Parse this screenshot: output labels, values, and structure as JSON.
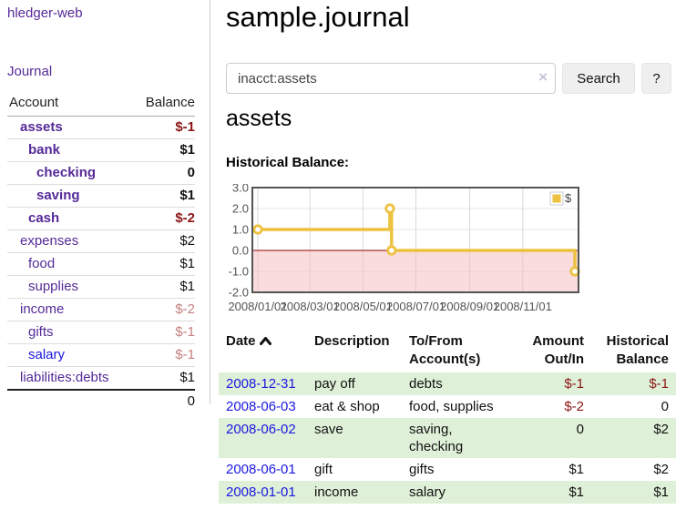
{
  "colors": {
    "link_purple": "#552a97",
    "link_blue": "#1c18e0",
    "negative_strong": "#8b1515",
    "negative_weak": "#c48080",
    "row_green": "#dff0d8"
  },
  "sidebar": {
    "app_title": "hledger-web",
    "nav": [
      {
        "label": "Journal"
      }
    ],
    "accounts_table": {
      "headers": {
        "account": "Account",
        "balance": "Balance"
      },
      "rows": [
        {
          "account": "assets",
          "level": 1,
          "bold": true,
          "balance": "$-1",
          "neg": "strong"
        },
        {
          "account": "bank",
          "level": 2,
          "bold": true,
          "balance": "$1"
        },
        {
          "account": "checking",
          "level": 3,
          "bold": true,
          "balance": "0"
        },
        {
          "account": "saving",
          "level": 3,
          "bold": true,
          "balance": "$1"
        },
        {
          "account": "cash",
          "level": 2,
          "bold": true,
          "balance": "$-2",
          "neg": "strong"
        },
        {
          "account": "expenses",
          "level": 1,
          "balance": "$2"
        },
        {
          "account": "food",
          "level": 2,
          "balance": "$1"
        },
        {
          "account": "supplies",
          "level": 2,
          "balance": "$1"
        },
        {
          "account": "income",
          "level": 1,
          "balance": "$-2",
          "neg": "weak"
        },
        {
          "account": "gifts",
          "level": 2,
          "balance": "$-1",
          "neg": "weak"
        },
        {
          "account": "salary",
          "level": 2,
          "blue": true,
          "balance": "$-1",
          "neg": "weak"
        },
        {
          "account": "liabilities:debts",
          "level": 1,
          "balance": "$1"
        }
      ],
      "total": "0"
    }
  },
  "main": {
    "title": "sample.journal",
    "search": {
      "value": "inacct:assets",
      "clear_icon": "×",
      "button": "Search",
      "help_button": "?"
    },
    "account_heading": "assets",
    "chart_label": "Historical Balance:",
    "register": {
      "headers": [
        "Date",
        "Description",
        "To/From Account(s)",
        "Amount Out/In",
        "Historical Balance"
      ],
      "sort_icon": "chevron-up",
      "rows": [
        {
          "date": "2008-12-31",
          "description": "pay off",
          "accounts": "debts",
          "amount": "$-1",
          "balance": "$-1"
        },
        {
          "date": "2008-06-03",
          "description": "eat & shop",
          "accounts": "food, supplies",
          "amount": "$-2",
          "balance": "0"
        },
        {
          "date": "2008-06-02",
          "description": "save",
          "accounts": "saving, checking",
          "amount": "0",
          "balance": "$2"
        },
        {
          "date": "2008-06-01",
          "description": "gift",
          "accounts": "gifts",
          "amount": "$1",
          "balance": "$2"
        },
        {
          "date": "2008-01-01",
          "description": "income",
          "accounts": "salary",
          "amount": "$1",
          "balance": "$1"
        }
      ]
    }
  },
  "chart_data": {
    "type": "line",
    "title": "Historical Balance:",
    "step": true,
    "x_range": [
      "2008-01-01",
      "2008-12-31"
    ],
    "x_ticks": [
      "2008/01/01",
      "2008/03/01",
      "2008/05/01",
      "2008/07/01",
      "2008/09/01",
      "2008/11/01"
    ],
    "y_ticks": [
      3.0,
      2.0,
      1.0,
      0.0,
      -1.0,
      -2.0
    ],
    "ylim": [
      -2,
      3
    ],
    "series": [
      {
        "name": "$",
        "color": "#edc240",
        "points": [
          {
            "date": "2008-01-01",
            "value": 1
          },
          {
            "date": "2008-06-01",
            "value": 2
          },
          {
            "date": "2008-06-03",
            "value": 0
          },
          {
            "date": "2008-12-31",
            "value": -1
          }
        ]
      }
    ],
    "legend": {
      "label": "$",
      "position": "top-right"
    },
    "negative_region_fill": "#f6b9b9",
    "zero_line_color": "#8b0000",
    "border_color": "#545454",
    "grid_color": "#d8d8d8"
  }
}
